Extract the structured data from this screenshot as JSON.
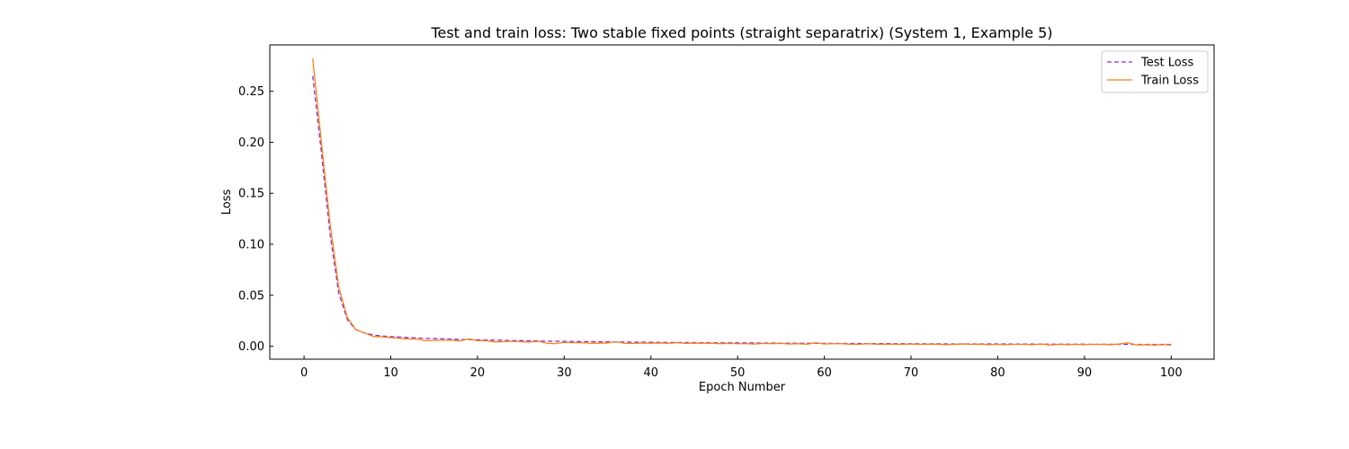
{
  "chart_data": {
    "type": "line",
    "title": "Test and train loss: Two stable fixed points (straight separatrix) (System 1, Example 5)",
    "xlabel": "Epoch Number",
    "ylabel": "Loss",
    "xlim": [
      -3.95,
      104.95
    ],
    "ylim": [
      -0.0127,
      0.2955
    ],
    "xticks": [
      0,
      10,
      20,
      30,
      40,
      50,
      60,
      70,
      80,
      90,
      100
    ],
    "xtick_labels": [
      "0",
      "10",
      "20",
      "30",
      "40",
      "50",
      "60",
      "70",
      "80",
      "90",
      "100"
    ],
    "yticks": [
      0.0,
      0.05,
      0.1,
      0.15,
      0.2,
      0.25
    ],
    "ytick_labels": [
      "0.00",
      "0.05",
      "0.10",
      "0.15",
      "0.20",
      "0.25"
    ],
    "grid": false,
    "legend_position": "upper right",
    "x": [
      1,
      2,
      3,
      4,
      5,
      6,
      7,
      8,
      9,
      10,
      11,
      12,
      13,
      14,
      15,
      16,
      17,
      18,
      19,
      20,
      21,
      22,
      23,
      24,
      25,
      26,
      27,
      28,
      29,
      30,
      31,
      32,
      33,
      34,
      35,
      36,
      37,
      38,
      39,
      40,
      41,
      42,
      43,
      44,
      45,
      46,
      47,
      48,
      49,
      50,
      51,
      52,
      53,
      54,
      55,
      56,
      57,
      58,
      59,
      60,
      61,
      62,
      63,
      64,
      65,
      66,
      67,
      68,
      69,
      70,
      71,
      72,
      73,
      74,
      75,
      76,
      77,
      78,
      79,
      80,
      81,
      82,
      83,
      84,
      85,
      86,
      87,
      88,
      89,
      90,
      91,
      92,
      93,
      94,
      95,
      96,
      97,
      98,
      99,
      100
    ],
    "series": [
      {
        "name": "Test Loss",
        "color": "#8a2be2",
        "style": "dashed",
        "values": [
          0.265,
          0.19,
          0.11,
          0.052,
          0.026,
          0.016,
          0.013,
          0.011,
          0.01,
          0.0095,
          0.009,
          0.0085,
          0.0082,
          0.0078,
          0.0075,
          0.0072,
          0.007,
          0.0067,
          0.0065,
          0.0063,
          0.0061,
          0.006,
          0.0058,
          0.0056,
          0.0055,
          0.0053,
          0.0052,
          0.005,
          0.0049,
          0.0048,
          0.0047,
          0.0046,
          0.0045,
          0.0044,
          0.0043,
          0.0042,
          0.0041,
          0.004,
          0.004,
          0.0039,
          0.0038,
          0.0037,
          0.0037,
          0.0036,
          0.0035,
          0.0035,
          0.0034,
          0.0034,
          0.0033,
          0.0033,
          0.0032,
          0.0032,
          0.0031,
          0.0031,
          0.003,
          0.003,
          0.0029,
          0.0029,
          0.0029,
          0.0028,
          0.0028,
          0.0027,
          0.0027,
          0.0027,
          0.0026,
          0.0026,
          0.0026,
          0.0025,
          0.0025,
          0.0025,
          0.0024,
          0.0024,
          0.0024,
          0.0023,
          0.0023,
          0.0023,
          0.0023,
          0.0022,
          0.0022,
          0.0022,
          0.0022,
          0.0021,
          0.0021,
          0.0021,
          0.0021,
          0.002,
          0.002,
          0.002,
          0.002,
          0.002,
          0.0019,
          0.0019,
          0.0019,
          0.0019,
          0.0019,
          0.0018,
          0.0018,
          0.0018,
          0.0018,
          0.0018
        ]
      },
      {
        "name": "Train Loss",
        "color": "#ff7f0e",
        "style": "solid",
        "values": [
          0.282,
          0.2,
          0.12,
          0.058,
          0.028,
          0.016,
          0.013,
          0.0095,
          0.0092,
          0.0085,
          0.0078,
          0.0072,
          0.007,
          0.0055,
          0.0058,
          0.0058,
          0.006,
          0.0052,
          0.0072,
          0.0055,
          0.0055,
          0.0042,
          0.0045,
          0.0048,
          0.0045,
          0.004,
          0.0048,
          0.003,
          0.0025,
          0.0038,
          0.0035,
          0.0035,
          0.003,
          0.003,
          0.0032,
          0.0045,
          0.0028,
          0.0028,
          0.0032,
          0.003,
          0.0032,
          0.0028,
          0.0035,
          0.0028,
          0.003,
          0.003,
          0.003,
          0.0025,
          0.0028,
          0.0025,
          0.0025,
          0.0022,
          0.0028,
          0.0025,
          0.0028,
          0.0022,
          0.0025,
          0.002,
          0.0035,
          0.0022,
          0.0025,
          0.0025,
          0.002,
          0.0018,
          0.0025,
          0.002,
          0.002,
          0.002,
          0.0018,
          0.0022,
          0.0018,
          0.002,
          0.002,
          0.0015,
          0.0018,
          0.0022,
          0.0018,
          0.002,
          0.0015,
          0.0018,
          0.0015,
          0.0018,
          0.0018,
          0.0015,
          0.0022,
          0.0012,
          0.0018,
          0.0015,
          0.0018,
          0.0015,
          0.0018,
          0.0018,
          0.0015,
          0.0022,
          0.0035,
          0.0012,
          0.0015,
          0.0012,
          0.0015,
          0.0012
        ]
      }
    ]
  }
}
